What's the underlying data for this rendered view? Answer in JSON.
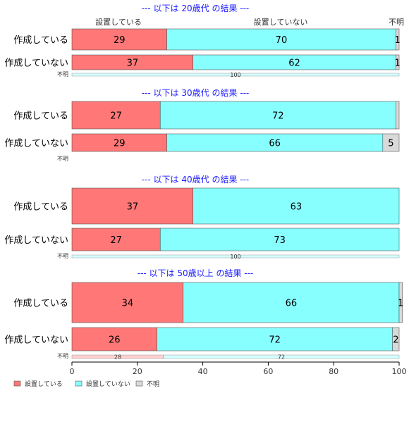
{
  "chart_data": {
    "type": "bar",
    "orientation": "horizontal",
    "stacked": true,
    "xlim": [
      0,
      100
    ],
    "x_ticks": [
      "0",
      "20",
      "40",
      "60",
      "80",
      "100"
    ],
    "column_headers": [
      "設置している",
      "設置していない",
      "不明"
    ],
    "legend": {
      "placement": "bottom-left",
      "entries": [
        "設置している",
        "設置していない",
        "不明"
      ]
    },
    "colors": {
      "設置している": "#ff7777",
      "設置していない": "#88ffff",
      "不明": "#d9d9d9",
      "title": "#1a1aff"
    },
    "groups": [
      {
        "title": "--- 以下は 20歳代 の結果 ---",
        "rows": [
          {
            "label": "作成している",
            "values": [
              29,
              70,
              1
            ],
            "labels": [
              "29",
              "70",
              "1"
            ]
          },
          {
            "label": "作成していない",
            "values": [
              37,
              62,
              1
            ],
            "labels": [
              "37",
              "62",
              "1"
            ]
          }
        ],
        "unknown": {
          "label": "不明",
          "values": [
            0,
            100,
            0
          ],
          "labels": [
            "",
            "100",
            ""
          ]
        }
      },
      {
        "title": "--- 以下は 30歳代 の結果 ---",
        "rows": [
          {
            "label": "作成している",
            "values": [
              27,
              72,
              1
            ],
            "labels": [
              "27",
              "72",
              ""
            ]
          },
          {
            "label": "作成していない",
            "values": [
              29,
              66,
              5
            ],
            "labels": [
              "29",
              "66",
              "5"
            ]
          }
        ],
        "unknown": {
          "label": "不明",
          "values": [
            0,
            0,
            0
          ],
          "labels": [
            "",
            "",
            ""
          ]
        }
      },
      {
        "title": "--- 以下は 40歳代 の結果 ---",
        "rows": [
          {
            "label": "作成している",
            "values": [
              37,
              63,
              0
            ],
            "labels": [
              "37",
              "63",
              ""
            ]
          },
          {
            "label": "作成していない",
            "values": [
              27,
              73,
              0
            ],
            "labels": [
              "27",
              "73",
              ""
            ]
          }
        ],
        "unknown": {
          "label": "不明",
          "values": [
            0,
            100,
            0
          ],
          "labels": [
            "",
            "100",
            ""
          ]
        }
      },
      {
        "title": "--- 以下は 50歳以上 の結果 ---",
        "rows": [
          {
            "label": "作成している",
            "values": [
              34,
              66,
              1
            ],
            "labels": [
              "34",
              "66",
              "1"
            ]
          },
          {
            "label": "作成していない",
            "values": [
              26,
              72,
              2
            ],
            "labels": [
              "26",
              "72",
              "2"
            ]
          }
        ],
        "unknown": {
          "label": "不明",
          "values": [
            28,
            72,
            0
          ],
          "labels": [
            "28",
            "72",
            ""
          ]
        }
      }
    ]
  }
}
